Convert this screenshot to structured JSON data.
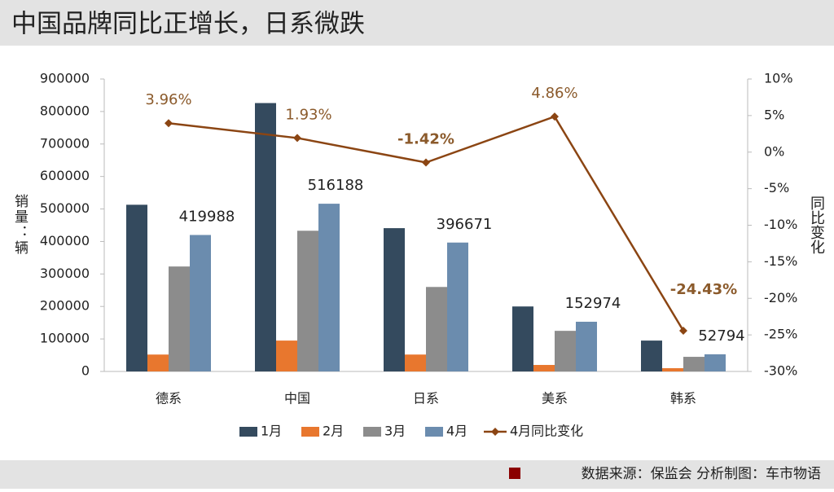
{
  "header": {
    "title": "中国品牌同比正增长，日系微跌"
  },
  "chart_data": {
    "type": "bar",
    "y_label": "销量：辆",
    "y2_label": "同比变化",
    "categories": [
      "德系",
      "中国",
      "日系",
      "美系",
      "韩系"
    ],
    "series": [
      {
        "name": "1月",
        "color": "#344a5e",
        "values": [
          513000,
          826000,
          441000,
          200000,
          95000
        ]
      },
      {
        "name": "2月",
        "color": "#e8772e",
        "values": [
          52000,
          95000,
          52000,
          20000,
          10000
        ]
      },
      {
        "name": "3月",
        "color": "#8c8c8c",
        "values": [
          323000,
          433000,
          260000,
          125000,
          45000
        ]
      },
      {
        "name": "4月",
        "color": "#6b8cae",
        "values": [
          419988,
          516188,
          396671,
          152974,
          52794
        ]
      },
      {
        "name": "4月同比变化",
        "type": "line",
        "axis": "y2",
        "color": "#8b4513",
        "values": [
          3.96,
          1.93,
          -1.42,
          4.86,
          -24.43
        ],
        "value_labels": [
          "3.96%",
          "1.93%",
          "-1.42%",
          "4.86%",
          "-24.43%"
        ]
      }
    ],
    "ylim": [
      0,
      900000
    ],
    "yticks": [
      0,
      100000,
      200000,
      300000,
      400000,
      500000,
      600000,
      700000,
      800000,
      900000
    ],
    "y2lim": [
      -30,
      10
    ],
    "y2ticks": [
      {
        "value": -30,
        "label": "-30%"
      },
      {
        "value": -25,
        "label": "-25%"
      },
      {
        "value": -20,
        "label": "-20%"
      },
      {
        "value": -15,
        "label": "-15%"
      },
      {
        "value": -10,
        "label": "-10%"
      },
      {
        "value": -5,
        "label": "-5%"
      },
      {
        "value": 0,
        "label": "0%"
      },
      {
        "value": 5,
        "label": "5%"
      },
      {
        "value": 10,
        "label": "10%"
      }
    ],
    "data_labels_series": 3,
    "legend": "bottom",
    "grid": false
  },
  "footer": {
    "source": "数据来源：保监会  分析制图：车市物语"
  }
}
